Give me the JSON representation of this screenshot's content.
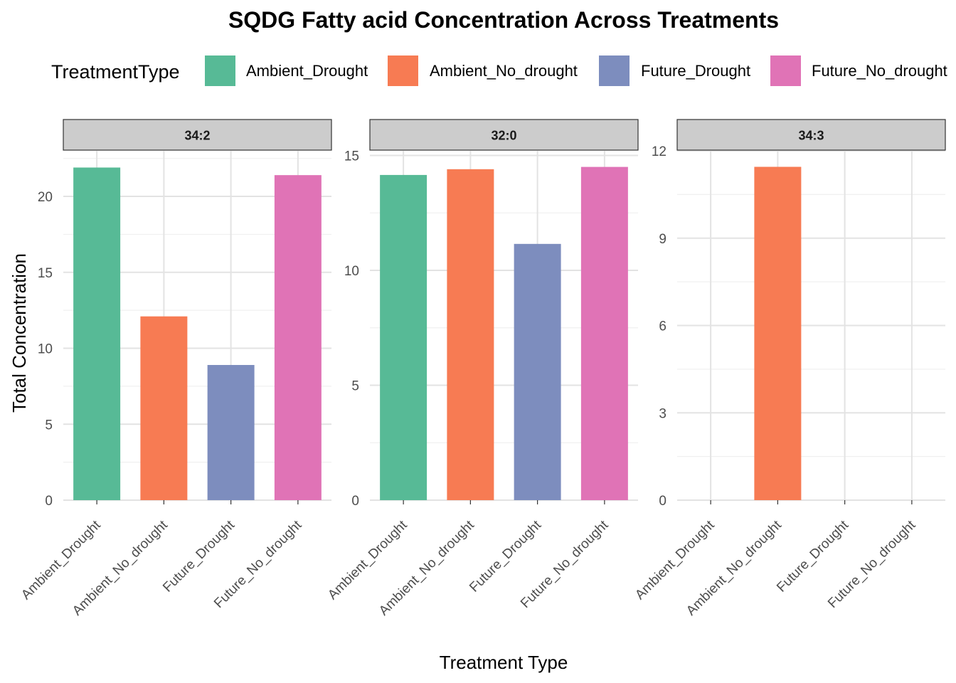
{
  "chart_data": {
    "type": "bar",
    "title": "SQDG  Fatty acid Concentration Across Treatments",
    "xlabel": "Treatment Type",
    "ylabel": "Total Concentration",
    "legend": {
      "title": "TreatmentType",
      "placement": "top",
      "entries": [
        "Ambient_Drought",
        "Ambient_No_drought",
        "Future_Drought",
        "Future_No_drought"
      ]
    },
    "categories": [
      "Ambient_Drought",
      "Ambient_No_drought",
      "Future_Drought",
      "Future_No_drought"
    ],
    "colors": {
      "Ambient_Drought": "#57BA96",
      "Ambient_No_drought": "#F77B53",
      "Future_Drought": "#7D8DBE",
      "Future_No_drought": "#E073B6"
    },
    "grid": true,
    "facets": [
      {
        "label": "34:2",
        "ylim": [
          0,
          23.0
        ],
        "yticks": [
          0,
          5,
          10,
          15,
          20
        ],
        "values": [
          21.9,
          12.1,
          8.9,
          21.4
        ]
      },
      {
        "label": "32:0",
        "ylim": [
          0,
          15.2
        ],
        "yticks": [
          0,
          5,
          10,
          15
        ],
        "values": [
          14.15,
          14.4,
          11.15,
          14.5
        ]
      },
      {
        "label": "34:3",
        "ylim": [
          0,
          12.0
        ],
        "yticks": [
          0,
          3,
          6,
          9,
          12
        ],
        "values": [
          0,
          11.45,
          0,
          0
        ]
      }
    ]
  }
}
